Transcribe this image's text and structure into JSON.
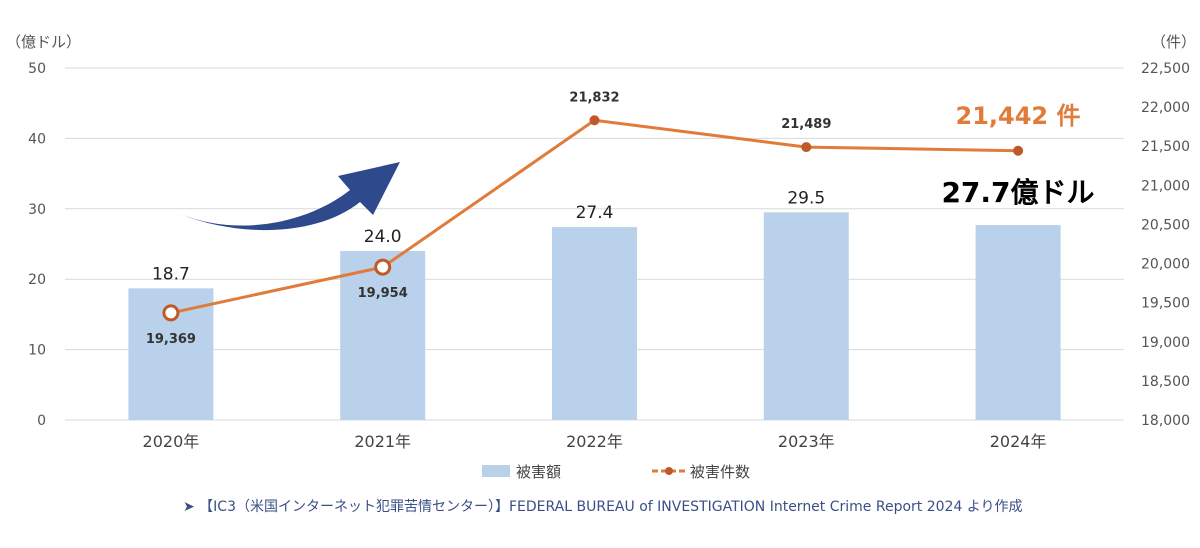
{
  "chart_data": {
    "type": "bar",
    "categories": [
      "2020年",
      "2021年",
      "2022年",
      "2023年",
      "2024年"
    ],
    "left_axis": {
      "unit_label": "（億ドル）",
      "ylim": [
        0,
        50
      ],
      "ticks": [
        "0",
        "10",
        "20",
        "30",
        "40",
        "50"
      ]
    },
    "right_axis": {
      "unit_label": "（件）",
      "ylim": [
        18000,
        22500
      ],
      "ticks": [
        "18,000",
        "18,500",
        "19,000",
        "19,500",
        "20,000",
        "20,500",
        "21,000",
        "21,500",
        "22,000",
        "22,500"
      ]
    },
    "series": [
      {
        "name": "被害額",
        "kind": "bar",
        "axis": "left",
        "values": [
          18.7,
          24.0,
          27.4,
          29.5,
          27.7
        ],
        "labels": [
          "18.7",
          "24.0",
          "27.4",
          "29.5",
          ""
        ],
        "color": "#b9d1ea"
      },
      {
        "name": "被害件数",
        "kind": "line",
        "axis": "right",
        "values": [
          19369,
          19954,
          21832,
          21489,
          21442
        ],
        "labels": [
          "19,369",
          "19,954",
          "21,832",
          "21,489",
          ""
        ],
        "color": "#e07b39"
      }
    ],
    "highlights": {
      "count": "21,442 件",
      "amount": "27.7億ドル"
    },
    "grid": true,
    "legend_position": "bottom",
    "source": "➤ 【IC3（米国インターネット犯罪苦情センター）】FEDERAL BUREAU of INVESTIGATION Internet Crime Report 2024 より作成"
  },
  "colors": {
    "bar": "#b9d1ea",
    "line": "#e07b39",
    "marker": "#c0592a",
    "highlight_count": "#e07b39",
    "arrow": "#2e4a8c",
    "grid": "#d9d9d9",
    "source": "#3a4f86"
  },
  "icons": {
    "trend_arrow": "trend-up-arrow-icon"
  }
}
